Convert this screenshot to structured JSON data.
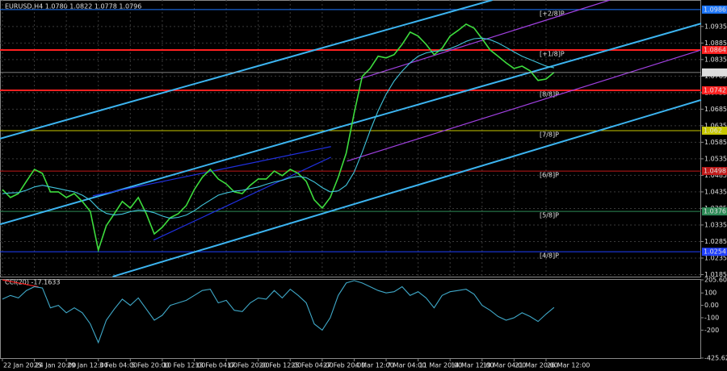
{
  "chart_data": [
    {
      "type": "line",
      "title": "EURUSD,H4  1.0780 1.0822 1.0778 1.0796",
      "xlim": [
        -0.3,
        87.4
      ],
      "xticks": [
        {
          "value": 0,
          "label": "22 Jan 2025"
        },
        {
          "value": 4,
          "label": "24 Jan 20:00"
        },
        {
          "value": 8,
          "label": "29 Jan 12:00"
        },
        {
          "value": 12,
          "label": "3 Feb 04:00"
        },
        {
          "value": 16,
          "label": "5 Feb 20:00"
        },
        {
          "value": 20,
          "label": "10 Feb 12:00"
        },
        {
          "value": 24,
          "label": "13 Feb 04:00"
        },
        {
          "value": 28,
          "label": "17 Feb 20:00"
        },
        {
          "value": 32,
          "label": "20 Feb 12:00"
        },
        {
          "value": 36,
          "label": "25 Feb 04:00"
        },
        {
          "value": 40,
          "label": "27 Feb 20:00"
        },
        {
          "value": 44,
          "label": "4 Mar 12:00"
        },
        {
          "value": 48,
          "label": "7 Mar 04:00"
        },
        {
          "value": 52,
          "label": "11 Mar 20:00"
        },
        {
          "value": 56,
          "label": "14 Mar 12:00"
        },
        {
          "value": 60,
          "label": "19 Mar 04:00"
        },
        {
          "value": 64,
          "label": "21 Mar 20:00"
        },
        {
          "value": 68,
          "label": "26 Mar 12:00"
        }
      ],
      "ylim": [
        1.0174,
        1.1015
      ],
      "yticks": [
        1.0185,
        1.0235,
        1.0285,
        1.0335,
        1.0385,
        1.0435,
        1.0485,
        1.0535,
        1.0585,
        1.0635,
        1.0685,
        1.0735,
        1.0785,
        1.0835,
        1.0885,
        1.0935
      ],
      "grid": true,
      "series": [
        {
          "color": "#3ddc3d",
          "values": [
            1.0442,
            1.0418,
            1.043,
            1.0467,
            1.0503,
            1.0491,
            1.0435,
            1.0435,
            1.0418,
            1.043,
            1.0406,
            1.0376,
            1.0259,
            1.0333,
            1.0369,
            1.0406,
            1.0386,
            1.0418,
            1.0369,
            1.0308,
            1.0328,
            1.0357,
            1.0369,
            1.0394,
            1.0442,
            1.0479,
            1.0503,
            1.0474,
            1.0459,
            1.0435,
            1.043,
            1.0455,
            1.0474,
            1.0474,
            1.0498,
            1.0484,
            1.0503,
            1.0491,
            1.0467,
            1.0411,
            1.0386,
            1.0418,
            1.0479,
            1.0552,
            1.0674,
            1.0784,
            1.0808,
            1.0845,
            1.084,
            1.085,
            1.0881,
            1.0918,
            1.0906,
            1.0881,
            1.085,
            1.0869,
            1.0906,
            1.0923,
            1.0942,
            1.093,
            1.0898,
            1.0864,
            1.0845,
            1.0825,
            1.0808,
            1.0815,
            1.0801,
            1.0772,
            1.0776,
            1.0796
          ]
        },
        {
          "color": "#40c4dc",
          "values": [
            1.043,
            1.0432,
            1.0433,
            1.044,
            1.045,
            1.0455,
            1.045,
            1.0445,
            1.044,
            1.0435,
            1.0425,
            1.041,
            1.0385,
            1.037,
            1.0365,
            1.0368,
            1.0375,
            1.038,
            1.0378,
            1.0372,
            1.0362,
            1.0355,
            1.0358,
            1.0365,
            1.0378,
            1.0395,
            1.041,
            1.0425,
            1.0432,
            1.0437,
            1.044,
            1.0445,
            1.045,
            1.0458,
            1.0465,
            1.047,
            1.0478,
            1.0482,
            1.0478,
            1.0465,
            1.0448,
            1.0435,
            1.0438,
            1.0455,
            1.0495,
            1.0555,
            1.062,
            1.068,
            1.073,
            1.077,
            1.08,
            1.0825,
            1.0845,
            1.0855,
            1.086,
            1.0862,
            1.0868,
            1.0878,
            1.089,
            1.0898,
            1.09,
            1.0895,
            1.0885,
            1.0872,
            1.0858,
            1.0845,
            1.0835,
            1.0825,
            1.0815,
            1.081
          ]
        }
      ],
      "trendlines": [
        {
          "color": "#3cb4f0",
          "x": [
            -0.3,
            61.3
          ],
          "y": [
            1.0596,
            1.1015
          ]
        },
        {
          "color": "#3cb4f0",
          "x": [
            -0.3,
            87.4
          ],
          "y": [
            1.0337,
            1.0944
          ]
        },
        {
          "color": "#3cb4f0",
          "x": [
            13.8,
            87.4
          ],
          "y": [
            1.0179,
            1.0713
          ]
        },
        {
          "color": "#a040e0",
          "x": [
            44.1,
            76
          ],
          "y": [
            1.0772,
            1.1015
          ]
        },
        {
          "color": "#a040e0",
          "x": [
            43.1,
            87.4
          ],
          "y": [
            1.0528,
            1.0864
          ]
        },
        {
          "color": "#2030e0",
          "x": [
            11.3,
            41.1
          ],
          "y": [
            1.0423,
            1.0572
          ]
        },
        {
          "color": "#2030e0",
          "x": [
            18.9,
            41.1
          ],
          "y": [
            1.0289,
            1.054
          ]
        }
      ],
      "levels": [
        {
          "value": 1.0986,
          "label": "[+2/8]P",
          "color": "#1e78ff"
        },
        {
          "value": 1.0864,
          "label": "[+1/8]P",
          "color": "#ff2020"
        },
        {
          "value": 1.0742,
          "label": "[8/8]P",
          "color": "#ff2020"
        },
        {
          "value": 1.062,
          "label": "[7/8]P",
          "color": "#c8c800"
        },
        {
          "value": 1.0498,
          "label": "[6/8]P",
          "color": "#c01818"
        },
        {
          "value": 1.0376,
          "label": "[5/8]P",
          "color": "#2e8b57"
        },
        {
          "value": 1.0254,
          "label": "[4/8]P",
          "color": "#2040ff"
        }
      ],
      "last": 1.0796
    },
    {
      "type": "line",
      "title": "CCI(20) -17.1633",
      "xlim": [
        -0.3,
        87.4
      ],
      "ylim": [
        -425.6289,
        205.6007
      ],
      "yticks": [
        205.6007,
        100,
        {
          "value": 0,
          "label": "0.00"
        },
        -100,
        -200,
        -425.6289
      ],
      "series": [
        {
          "color": "#3fa8c8",
          "values": [
            50,
            80,
            60,
            120,
            150,
            140,
            -20,
            0,
            -60,
            -20,
            -60,
            -150,
            -300,
            -120,
            -30,
            50,
            0,
            60,
            -30,
            -120,
            -80,
            0,
            20,
            40,
            80,
            120,
            130,
            20,
            40,
            -40,
            -50,
            20,
            60,
            50,
            120,
            60,
            130,
            80,
            20,
            -150,
            -200,
            -100,
            80,
            180,
            200,
            180,
            150,
            120,
            100,
            110,
            150,
            80,
            110,
            60,
            -20,
            80,
            110,
            120,
            130,
            90,
            0,
            -40,
            -90,
            -120,
            -100,
            -60,
            -90,
            -130,
            -70,
            -17.1633
          ]
        }
      ],
      "trendlines": [
        {
          "color": "#ff2020",
          "x": [
            0,
            4.5
          ],
          "y": [
            205,
            150
          ]
        }
      ]
    }
  ]
}
